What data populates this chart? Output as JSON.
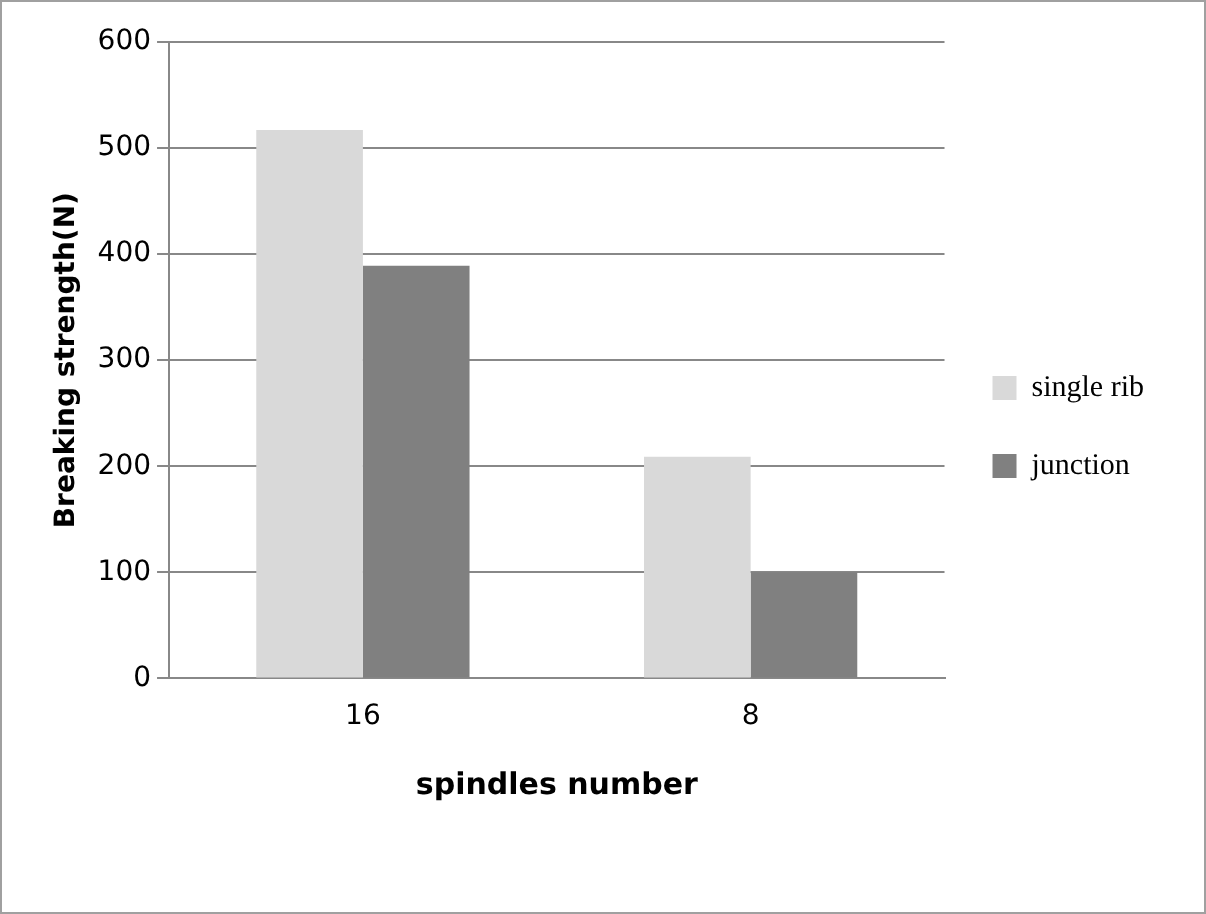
{
  "chart_data": {
    "type": "bar",
    "xlabel": "spindles number",
    "ylabel": "Breaking strength(N)",
    "categories": [
      "16",
      "8"
    ],
    "series": [
      {
        "name": "single rib",
        "color": "#d9d9d9",
        "values": [
          517,
          209
        ]
      },
      {
        "name": "junction",
        "color": "#808080",
        "values": [
          389,
          100
        ]
      }
    ],
    "ylim": [
      0,
      600
    ],
    "yticks": [
      0,
      100,
      200,
      300,
      400,
      500,
      600
    ],
    "grid": "y",
    "legend": "right"
  }
}
